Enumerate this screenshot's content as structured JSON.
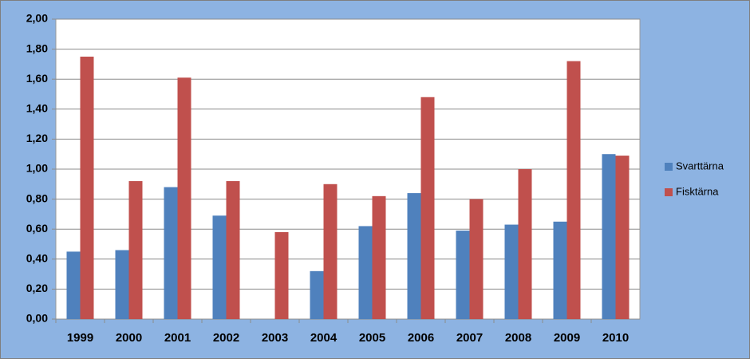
{
  "chart_data": {
    "type": "bar",
    "categories": [
      "1999",
      "2000",
      "2001",
      "2002",
      "2003",
      "2004",
      "2005",
      "2006",
      "2007",
      "2008",
      "2009",
      "2010"
    ],
    "series": [
      {
        "name": "Svarttärna",
        "color": "#4f81bd",
        "values": [
          0.45,
          0.46,
          0.88,
          0.69,
          null,
          0.32,
          0.62,
          0.84,
          0.59,
          0.63,
          0.65,
          1.1
        ]
      },
      {
        "name": "Fisktärna",
        "color": "#c0504d",
        "values": [
          1.75,
          0.92,
          1.61,
          0.92,
          0.58,
          0.9,
          0.82,
          1.48,
          0.8,
          1.0,
          1.72,
          1.09
        ]
      }
    ],
    "ylim": [
      0,
      2
    ],
    "yticks": [
      {
        "value": 0,
        "label": "0,00"
      },
      {
        "value": 0.2,
        "label": "0,20"
      },
      {
        "value": 0.4,
        "label": "0,40"
      },
      {
        "value": 0.6,
        "label": "0,60"
      },
      {
        "value": 0.8,
        "label": "0,80"
      },
      {
        "value": 1.0,
        "label": "1,00"
      },
      {
        "value": 1.2,
        "label": "1,20"
      },
      {
        "value": 1.4,
        "label": "1,40"
      },
      {
        "value": 1.6,
        "label": "1,60"
      },
      {
        "value": 1.8,
        "label": "1,80"
      },
      {
        "value": 2.0,
        "label": "2,00"
      }
    ],
    "grid": true,
    "legend": "right"
  }
}
